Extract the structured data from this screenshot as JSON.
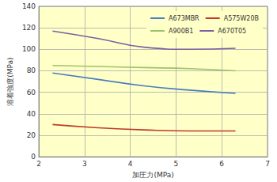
{
  "chart_data": {
    "type": "line",
    "x_label": "加圧力(MPa)",
    "y_label": "溶着強度(MPa)",
    "x": [
      2.3,
      3.3,
      4.3,
      5.3,
      6.3
    ],
    "series": [
      {
        "name": "A673MBR",
        "color": "#4a7ebf",
        "values": [
          78,
          72,
          66,
          62,
          59
        ]
      },
      {
        "name": "A575W20B",
        "color": "#c0392b",
        "values": [
          30,
          27,
          25,
          24,
          24
        ]
      },
      {
        "name": "A900B1",
        "color": "#9bc36a",
        "values": [
          85,
          84,
          83,
          82,
          80
        ]
      },
      {
        "name": "A670T05",
        "color": "#7b5fa0",
        "values": [
          117,
          110,
          102,
          100,
          101
        ]
      }
    ],
    "xlim": [
      2,
      7
    ],
    "xticks": [
      2,
      3,
      4,
      5,
      6,
      7
    ],
    "ylim": [
      0,
      140
    ],
    "yticks": [
      0,
      20,
      40,
      60,
      80,
      100,
      120,
      140
    ],
    "grid": true,
    "legend": "upper right"
  }
}
